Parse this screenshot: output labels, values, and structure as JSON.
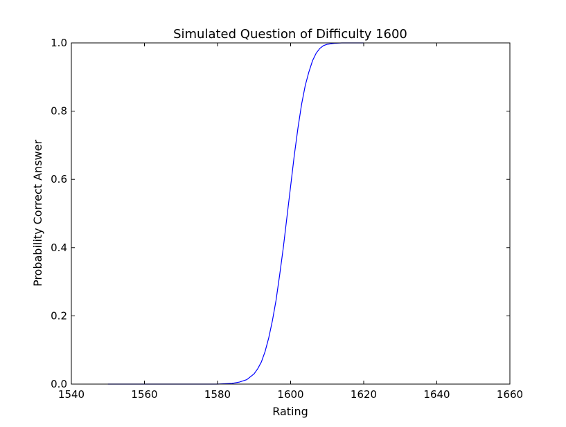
{
  "chart_data": {
    "type": "line",
    "title": "Simulated Question of Difficulty 1600",
    "xlabel": "Rating",
    "ylabel": "Probability Correct Answer",
    "xlim": [
      1540,
      1660
    ],
    "ylim": [
      0.0,
      1.0
    ],
    "xticks": [
      1540,
      1560,
      1580,
      1600,
      1620,
      1640,
      1660
    ],
    "xtick_labels": [
      "1540",
      "1560",
      "1580",
      "1600",
      "1620",
      "1640",
      "1660"
    ],
    "yticks": [
      0.0,
      0.2,
      0.4,
      0.6,
      0.8,
      1.0
    ],
    "ytick_labels": [
      "0.0",
      "0.2",
      "0.4",
      "0.6",
      "0.8",
      "1.0"
    ],
    "grid": false,
    "series": [
      {
        "color": "#0000ff",
        "x": [
          1550,
          1560,
          1570,
          1580,
          1584,
          1586,
          1588,
          1590,
          1591,
          1592,
          1593,
          1594,
          1595,
          1596,
          1597,
          1598,
          1599,
          1600,
          1601,
          1602,
          1603,
          1604,
          1605,
          1606,
          1607,
          1608,
          1609,
          1610,
          1612,
          1614,
          1616,
          1618,
          1620
        ],
        "y": [
          0.0,
          0.0,
          0.0,
          0.0,
          0.002,
          0.006,
          0.013,
          0.03,
          0.045,
          0.065,
          0.095,
          0.135,
          0.185,
          0.245,
          0.32,
          0.4,
          0.49,
          0.58,
          0.67,
          0.75,
          0.82,
          0.875,
          0.915,
          0.948,
          0.97,
          0.984,
          0.992,
          0.996,
          0.999,
          1.0,
          1.0,
          1.0,
          1.0
        ]
      }
    ]
  }
}
